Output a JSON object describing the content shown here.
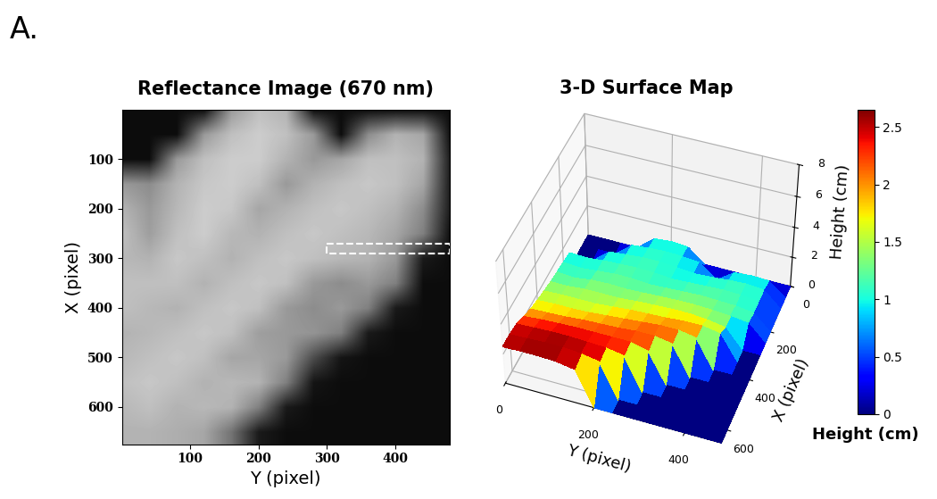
{
  "panel_label": "A.",
  "chart_data": [
    {
      "type": "image",
      "title": "Reflectance Image (670 nm)",
      "xlabel": "Y (pixel)",
      "ylabel": "X (pixel)",
      "x": [
        0,
        40,
        80,
        120,
        160,
        200,
        240,
        280,
        320,
        360,
        400,
        440,
        480
      ],
      "y": [
        0,
        50,
        100,
        150,
        200,
        250,
        300,
        350,
        400,
        450,
        500,
        550,
        600,
        650
      ],
      "xlim": [
        0,
        480
      ],
      "ylim": [
        0,
        675
      ],
      "xticks": [
        100,
        200,
        300,
        400
      ],
      "yticks": [
        100,
        200,
        300,
        400,
        500,
        600
      ],
      "roi": {
        "x": [
          270,
          290
        ],
        "y": [
          300,
          480
        ]
      },
      "cells": [
        [
          0.05,
          0.05,
          0.05,
          0.05,
          0.6,
          0.75,
          0.7,
          0.05,
          0.05,
          0.05,
          0.05,
          0.05,
          0.05
        ],
        [
          0.05,
          0.05,
          0.05,
          0.6,
          0.75,
          0.8,
          0.75,
          0.6,
          0.05,
          0.55,
          0.7,
          0.65,
          0.05
        ],
        [
          0.05,
          0.05,
          0.6,
          0.75,
          0.8,
          0.8,
          0.7,
          0.6,
          0.65,
          0.75,
          0.75,
          0.7,
          0.1
        ],
        [
          0.6,
          0.55,
          0.7,
          0.78,
          0.8,
          0.75,
          0.6,
          0.7,
          0.75,
          0.78,
          0.75,
          0.65,
          0.1
        ],
        [
          0.7,
          0.6,
          0.72,
          0.8,
          0.78,
          0.65,
          0.7,
          0.75,
          0.78,
          0.75,
          0.7,
          0.55,
          0.1
        ],
        [
          0.75,
          0.62,
          0.75,
          0.8,
          0.72,
          0.7,
          0.75,
          0.78,
          0.75,
          0.72,
          0.65,
          0.5,
          0.05
        ],
        [
          0.72,
          0.7,
          0.78,
          0.75,
          0.7,
          0.75,
          0.78,
          0.75,
          0.72,
          0.7,
          0.6,
          0.1,
          0.05
        ],
        [
          0.75,
          0.75,
          0.75,
          0.7,
          0.75,
          0.78,
          0.75,
          0.6,
          0.55,
          0.6,
          0.5,
          0.05,
          0.05
        ],
        [
          0.75,
          0.72,
          0.7,
          0.75,
          0.78,
          0.75,
          0.6,
          0.55,
          0.6,
          0.5,
          0.1,
          0.05,
          0.05
        ],
        [
          0.7,
          0.72,
          0.75,
          0.78,
          0.75,
          0.62,
          0.6,
          0.58,
          0.5,
          0.1,
          0.05,
          0.05,
          0.05
        ],
        [
          0.72,
          0.75,
          0.78,
          0.75,
          0.65,
          0.65,
          0.6,
          0.3,
          0.08,
          0.05,
          0.05,
          0.05,
          0.05
        ],
        [
          0.75,
          0.78,
          0.75,
          0.7,
          0.72,
          0.7,
          0.5,
          0.08,
          0.05,
          0.05,
          0.05,
          0.05,
          0.05
        ],
        [
          0.72,
          0.75,
          0.7,
          0.72,
          0.7,
          0.5,
          0.1,
          0.05,
          0.05,
          0.05,
          0.05,
          0.05,
          0.05
        ],
        [
          0.7,
          0.7,
          0.68,
          0.65,
          0.45,
          0.1,
          0.05,
          0.05,
          0.05,
          0.05,
          0.05,
          0.05,
          0.05
        ]
      ]
    },
    {
      "type": "surface",
      "title": "3-D Surface Map",
      "xlabel": "Y (pixel)",
      "ylabel": "X (pixel)",
      "zlabel": "Height (cm)",
      "x": [
        0,
        40,
        80,
        120,
        160,
        200,
        240,
        280,
        320,
        360,
        400,
        440,
        480
      ],
      "y": [
        0,
        50,
        100,
        150,
        200,
        250,
        300,
        350,
        400,
        450,
        500,
        550,
        600,
        650
      ],
      "xlim": [
        0,
        480
      ],
      "ylim": [
        0,
        650
      ],
      "zlim": [
        0,
        8
      ],
      "xticks": [
        0,
        200,
        400
      ],
      "yticks": [
        0,
        200,
        400,
        600
      ],
      "zticks": [
        0,
        2,
        4,
        6,
        8
      ],
      "cells": [
        [
          0,
          0,
          0,
          0,
          0.9,
          1.0,
          0.9,
          0,
          0,
          0,
          0,
          0,
          0
        ],
        [
          0,
          0,
          0,
          0.9,
          1.0,
          1.05,
          1.0,
          0.9,
          0,
          0.8,
          0.9,
          0.85,
          0
        ],
        [
          0,
          0,
          0.9,
          1.0,
          1.1,
          1.1,
          1.0,
          0.9,
          0.95,
          1.05,
          1.1,
          1.0,
          0
        ],
        [
          1.0,
          0.95,
          1.05,
          1.1,
          1.15,
          1.1,
          1.0,
          1.05,
          1.1,
          1.15,
          1.1,
          1.0,
          0
        ],
        [
          1.1,
          1.0,
          1.1,
          1.2,
          1.2,
          1.1,
          1.15,
          1.2,
          1.25,
          1.2,
          1.15,
          1.0,
          0
        ],
        [
          1.2,
          1.1,
          1.25,
          1.3,
          1.25,
          1.3,
          1.35,
          1.4,
          1.4,
          1.35,
          1.25,
          1.1,
          0
        ],
        [
          1.3,
          1.3,
          1.4,
          1.4,
          1.4,
          1.5,
          1.55,
          1.6,
          1.6,
          1.5,
          1.3,
          0,
          0
        ],
        [
          1.45,
          1.5,
          1.5,
          1.5,
          1.6,
          1.7,
          1.75,
          1.8,
          1.9,
          1.9,
          1.7,
          0,
          0
        ],
        [
          1.6,
          1.65,
          1.65,
          1.7,
          1.8,
          1.9,
          2.0,
          2.1,
          2.1,
          1.9,
          0,
          0,
          0
        ],
        [
          1.8,
          1.85,
          1.9,
          2.0,
          2.05,
          2.1,
          2.2,
          2.2,
          2.0,
          0,
          0,
          0,
          0
        ],
        [
          2.1,
          2.2,
          2.25,
          2.3,
          2.3,
          2.3,
          2.3,
          2.0,
          0,
          0,
          0,
          0,
          0
        ],
        [
          2.4,
          2.45,
          2.5,
          2.5,
          2.45,
          2.4,
          2.2,
          0,
          0,
          0,
          0,
          0,
          0
        ],
        [
          2.5,
          2.55,
          2.6,
          2.6,
          2.5,
          2.3,
          0,
          0,
          0,
          0,
          0,
          0,
          0
        ],
        [
          2.5,
          2.55,
          2.55,
          2.5,
          2.3,
          0,
          0,
          0,
          0,
          0,
          0,
          0,
          0
        ]
      ],
      "colorbar": {
        "label": "Height (cm)",
        "range": [
          0,
          2.65
        ],
        "ticks": [
          0,
          0.5,
          1,
          1.5,
          2,
          2.5
        ]
      }
    }
  ]
}
